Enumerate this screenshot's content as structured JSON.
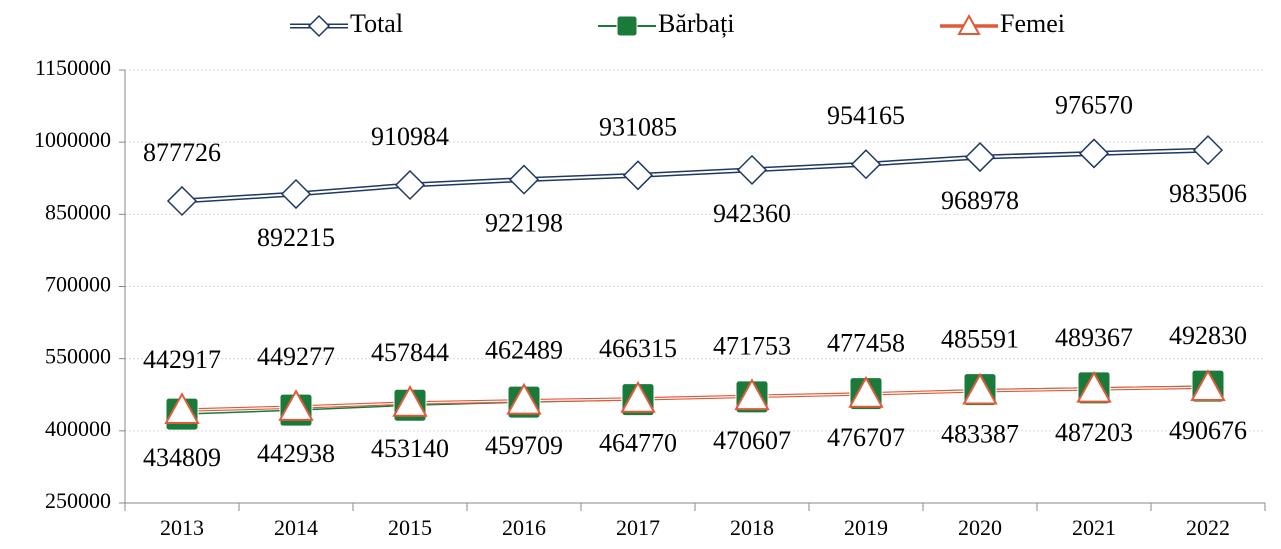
{
  "chart_data": {
    "type": "line",
    "categories": [
      "2013",
      "2014",
      "2015",
      "2016",
      "2017",
      "2018",
      "2019",
      "2020",
      "2021",
      "2022"
    ],
    "series": [
      {
        "name": "Total",
        "color": "#1f3864",
        "values": [
          877726,
          892215,
          910984,
          922198,
          931085,
          942360,
          954165,
          968978,
          976570,
          983506
        ]
      },
      {
        "name": "Bărbați",
        "color": "#1a7a3a",
        "values": [
          434809,
          442938,
          453140,
          459709,
          464770,
          470607,
          477458,
          485591,
          489367,
          492830
        ]
      },
      {
        "name": "Femei",
        "color": "#e05a3a",
        "values": [
          442917,
          449277,
          457844,
          462489,
          466315,
          471753,
          476707,
          483387,
          487203,
          490676
        ]
      }
    ],
    "ylim": [
      250000,
      1150000
    ],
    "yticks": [
      250000,
      400000,
      550000,
      700000,
      850000,
      1000000,
      1150000
    ],
    "grid": true,
    "legend": "top"
  }
}
